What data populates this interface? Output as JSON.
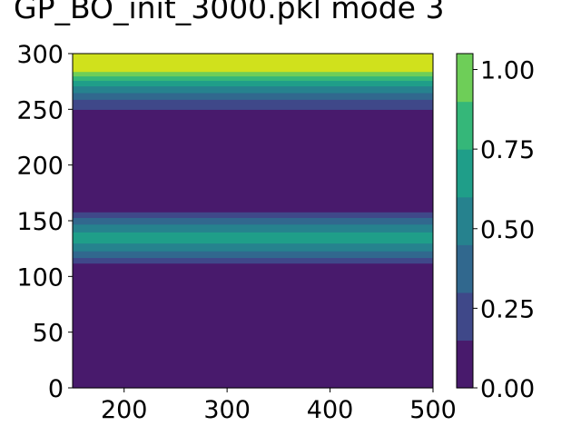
{
  "chart_data": {
    "type": "contourf",
    "title": "GP_BO_init_3000.pkl mode 3",
    "xlim": [
      150,
      500
    ],
    "ylim": [
      0,
      300
    ],
    "x_ticks": [
      "200",
      "300",
      "400",
      "500"
    ],
    "x_tick_values": [
      200,
      300,
      400,
      500
    ],
    "y_ticks": [
      "0",
      "50",
      "100",
      "150",
      "200",
      "250",
      "300"
    ],
    "y_tick_values": [
      0,
      50,
      100,
      150,
      200,
      250,
      300
    ],
    "colormap": "viridis",
    "colorbar": {
      "levels": [
        0.0,
        0.15,
        0.3,
        0.45,
        0.6,
        0.75,
        0.9,
        1.05
      ],
      "colors": [
        "#481a6c",
        "#3f4889",
        "#31688e",
        "#26828e",
        "#1f9e89",
        "#35b779",
        "#6ece58",
        "#d0e11c"
      ],
      "ticks": [
        "0.00",
        "0.25",
        "0.50",
        "0.75",
        "1.00"
      ],
      "tick_values": [
        0.0,
        0.25,
        0.5,
        0.75,
        1.0
      ]
    },
    "bands": [
      {
        "level": 0,
        "y_from": 0,
        "y_to": 112
      },
      {
        "level": 1,
        "y_from": 112,
        "y_to": 117
      },
      {
        "level": 2,
        "y_from": 117,
        "y_to": 123
      },
      {
        "level": 3,
        "y_from": 123,
        "y_to": 130
      },
      {
        "level": 4,
        "y_from": 130,
        "y_to": 140
      },
      {
        "level": 3,
        "y_from": 140,
        "y_to": 147
      },
      {
        "level": 2,
        "y_from": 147,
        "y_to": 153
      },
      {
        "level": 1,
        "y_from": 153,
        "y_to": 158
      },
      {
        "level": 0,
        "y_from": 158,
        "y_to": 250
      },
      {
        "level": 1,
        "y_from": 250,
        "y_to": 259
      },
      {
        "level": 2,
        "y_from": 259,
        "y_to": 265
      },
      {
        "level": 3,
        "y_from": 265,
        "y_to": 271
      },
      {
        "level": 4,
        "y_from": 271,
        "y_to": 276
      },
      {
        "level": 5,
        "y_from": 276,
        "y_to": 280
      },
      {
        "level": 6,
        "y_from": 280,
        "y_to": 284
      },
      {
        "level": 7,
        "y_from": 284,
        "y_to": 300
      }
    ]
  }
}
